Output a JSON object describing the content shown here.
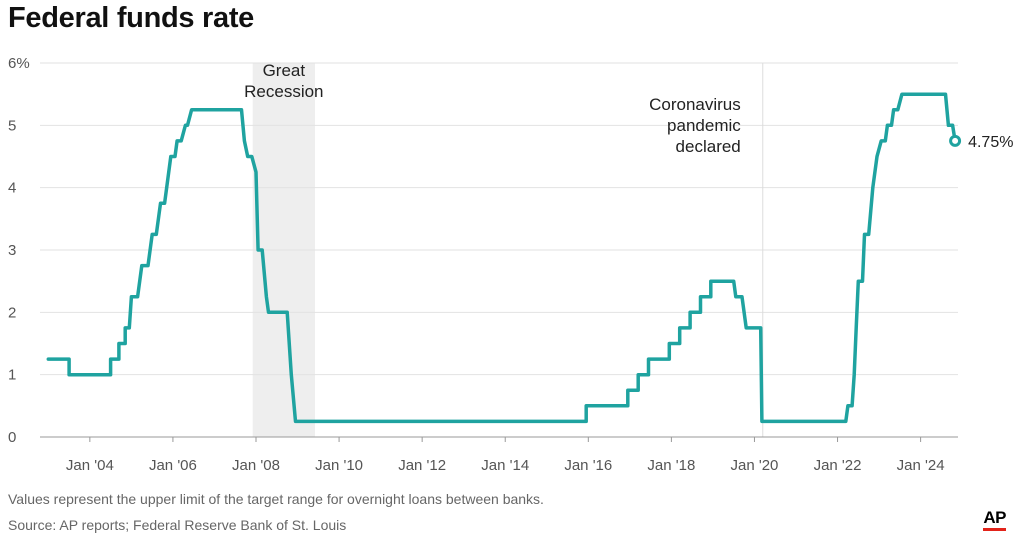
{
  "chart_data": {
    "type": "line",
    "title": "Federal funds rate",
    "xlabel": "",
    "ylabel": "",
    "ylim": [
      0,
      6
    ],
    "xlim": [
      2002.8,
      2024.9
    ],
    "y_ticks": [
      {
        "value": 0,
        "label": "0"
      },
      {
        "value": 1,
        "label": "1"
      },
      {
        "value": 2,
        "label": "2"
      },
      {
        "value": 3,
        "label": "3"
      },
      {
        "value": 4,
        "label": "4"
      },
      {
        "value": 5,
        "label": "5"
      },
      {
        "value": 6,
        "label": "6%"
      }
    ],
    "x_ticks": [
      {
        "value": 2004,
        "label": "Jan '04"
      },
      {
        "value": 2006,
        "label": "Jan '06"
      },
      {
        "value": 2008,
        "label": "Jan '08"
      },
      {
        "value": 2010,
        "label": "Jan '10"
      },
      {
        "value": 2012,
        "label": "Jan '12"
      },
      {
        "value": 2014,
        "label": "Jan '14"
      },
      {
        "value": 2016,
        "label": "Jan '16"
      },
      {
        "value": 2018,
        "label": "Jan '18"
      },
      {
        "value": 2020,
        "label": "Jan '20"
      },
      {
        "value": 2022,
        "label": "Jan '22"
      },
      {
        "value": 2024,
        "label": "Jan '24"
      }
    ],
    "grid": true,
    "series": [
      {
        "name": "Federal funds rate (upper limit of target range)",
        "color": "#1fa3a0",
        "points": [
          [
            2003.0,
            1.25
          ],
          [
            2003.5,
            1.25
          ],
          [
            2003.5,
            1.0
          ],
          [
            2004.5,
            1.0
          ],
          [
            2004.5,
            1.25
          ],
          [
            2004.7,
            1.25
          ],
          [
            2004.7,
            1.5
          ],
          [
            2004.85,
            1.5
          ],
          [
            2004.85,
            1.75
          ],
          [
            2004.95,
            1.75
          ],
          [
            2005.0,
            2.25
          ],
          [
            2005.15,
            2.25
          ],
          [
            2005.25,
            2.75
          ],
          [
            2005.4,
            2.75
          ],
          [
            2005.5,
            3.25
          ],
          [
            2005.6,
            3.25
          ],
          [
            2005.7,
            3.75
          ],
          [
            2005.8,
            3.75
          ],
          [
            2005.95,
            4.5
          ],
          [
            2006.05,
            4.5
          ],
          [
            2006.1,
            4.75
          ],
          [
            2006.2,
            4.75
          ],
          [
            2006.3,
            5.0
          ],
          [
            2006.35,
            5.0
          ],
          [
            2006.45,
            5.25
          ],
          [
            2007.65,
            5.25
          ],
          [
            2007.72,
            4.75
          ],
          [
            2007.8,
            4.5
          ],
          [
            2007.9,
            4.5
          ],
          [
            2008.0,
            4.25
          ],
          [
            2008.05,
            3.0
          ],
          [
            2008.15,
            3.0
          ],
          [
            2008.25,
            2.25
          ],
          [
            2008.3,
            2.0
          ],
          [
            2008.75,
            2.0
          ],
          [
            2008.85,
            1.0
          ],
          [
            2008.95,
            0.25
          ],
          [
            2015.95,
            0.25
          ],
          [
            2015.95,
            0.5
          ],
          [
            2016.95,
            0.5
          ],
          [
            2016.95,
            0.75
          ],
          [
            2017.2,
            0.75
          ],
          [
            2017.2,
            1.0
          ],
          [
            2017.45,
            1.0
          ],
          [
            2017.45,
            1.25
          ],
          [
            2017.95,
            1.25
          ],
          [
            2017.95,
            1.5
          ],
          [
            2018.2,
            1.5
          ],
          [
            2018.2,
            1.75
          ],
          [
            2018.45,
            1.75
          ],
          [
            2018.45,
            2.0
          ],
          [
            2018.7,
            2.0
          ],
          [
            2018.7,
            2.25
          ],
          [
            2018.95,
            2.25
          ],
          [
            2018.95,
            2.5
          ],
          [
            2019.5,
            2.5
          ],
          [
            2019.55,
            2.25
          ],
          [
            2019.7,
            2.25
          ],
          [
            2019.75,
            2.0
          ],
          [
            2019.8,
            1.75
          ],
          [
            2020.15,
            1.75
          ],
          [
            2020.18,
            0.25
          ],
          [
            2022.2,
            0.25
          ],
          [
            2022.25,
            0.5
          ],
          [
            2022.35,
            0.5
          ],
          [
            2022.4,
            1.0
          ],
          [
            2022.45,
            1.75
          ],
          [
            2022.5,
            2.5
          ],
          [
            2022.6,
            2.5
          ],
          [
            2022.65,
            3.25
          ],
          [
            2022.75,
            3.25
          ],
          [
            2022.85,
            4.0
          ],
          [
            2022.95,
            4.5
          ],
          [
            2023.05,
            4.75
          ],
          [
            2023.15,
            4.75
          ],
          [
            2023.2,
            5.0
          ],
          [
            2023.3,
            5.0
          ],
          [
            2023.35,
            5.25
          ],
          [
            2023.45,
            5.25
          ],
          [
            2023.55,
            5.5
          ],
          [
            2024.6,
            5.5
          ],
          [
            2024.67,
            5.0
          ],
          [
            2024.77,
            5.0
          ],
          [
            2024.83,
            4.75
          ]
        ]
      }
    ],
    "shaded_regions": [
      {
        "label": "Great Recession",
        "x_start": 2007.92,
        "x_end": 2009.42,
        "color": "#eeeeee"
      }
    ],
    "annotations": [
      {
        "lines": [
          "Great",
          "Recession"
        ],
        "x": 2008.67
      },
      {
        "lines": [
          "Coronavirus",
          "pandemic",
          "declared"
        ],
        "x": 2020.2
      }
    ],
    "end_label": {
      "text": "4.75%",
      "x": 2024.83,
      "y": 4.75
    }
  },
  "footer": {
    "note": "Values represent the upper limit of the target range for overnight loans between banks.",
    "source": "Source: AP reports; Federal Reserve Bank of St. Louis",
    "logo": "AP"
  }
}
